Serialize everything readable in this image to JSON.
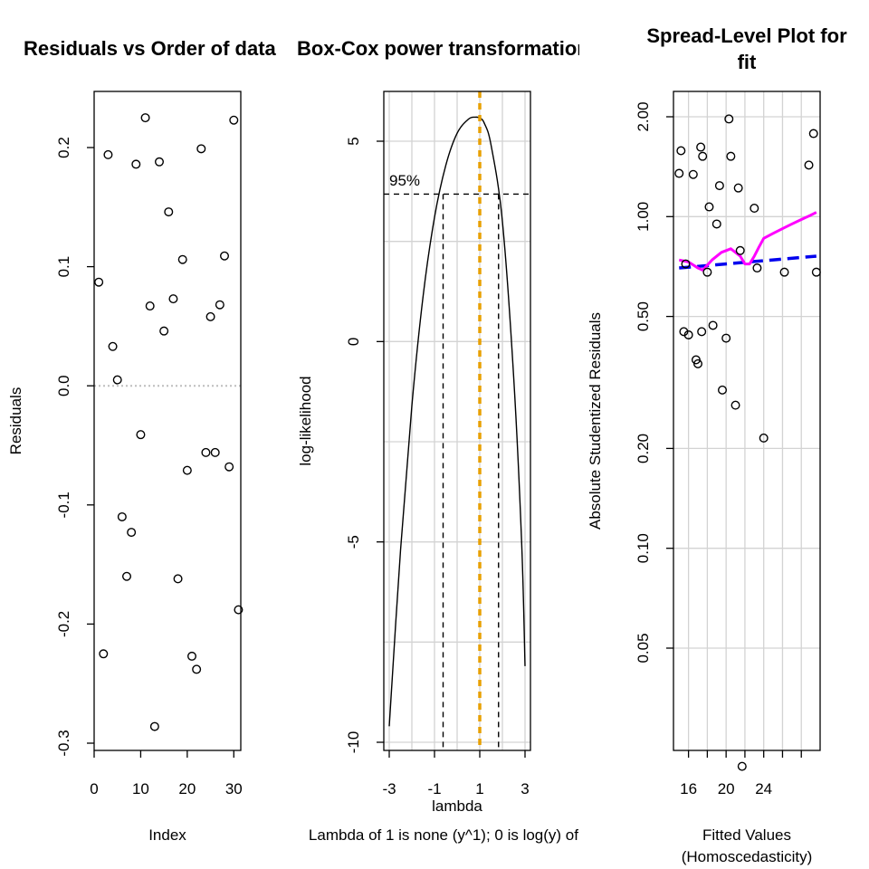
{
  "chart_data": [
    {
      "type": "scatter",
      "title": "Residuals vs Order of data",
      "xlabel": "Index",
      "ylabel": "Residuals",
      "xlim": [
        0,
        31.5
      ],
      "ylim": [
        -0.3,
        0.24
      ],
      "x_ticks": [
        0,
        10,
        20,
        30
      ],
      "y_ticks": [
        -0.3,
        -0.2,
        -0.1,
        0.0,
        0.1,
        0.2
      ],
      "y_tick_labels": [
        "-0.3",
        "-0.2",
        "-0.1",
        "0.0",
        "0.1",
        "0.2"
      ],
      "reference_line": {
        "y": 0,
        "style": "dotted",
        "color": "#bebebe"
      },
      "grid": false,
      "marker": "open-circle",
      "x": [
        1,
        2,
        3,
        4,
        5,
        6,
        7,
        8,
        9,
        10,
        11,
        12,
        13,
        14,
        15,
        16,
        17,
        18,
        19,
        20,
        21,
        22,
        23,
        24,
        25,
        26,
        27,
        28,
        29,
        30,
        31
      ],
      "y": [
        0.087,
        -0.225,
        0.194,
        0.033,
        0.005,
        -0.11,
        -0.16,
        -0.123,
        0.186,
        -0.041,
        0.225,
        0.067,
        -0.286,
        0.188,
        0.046,
        0.146,
        0.073,
        -0.162,
        0.106,
        -0.071,
        -0.227,
        -0.238,
        0.199,
        -0.056,
        0.058,
        -0.056,
        0.068,
        0.109,
        -0.068,
        0.223,
        -0.188
      ]
    },
    {
      "type": "line",
      "title": "Box-Cox power transformation",
      "xlabel": "lambda",
      "subtitle": "Lambda of 1 is none (y^1); 0 is log(y) of",
      "ylabel": "log-likelihood",
      "xlim": [
        -3.2,
        3.2
      ],
      "ylim": [
        -10.6,
        6.3
      ],
      "x_ticks": [
        -3,
        -1,
        1,
        3
      ],
      "x_minor_grid": [
        -3,
        -2,
        -1,
        0,
        1,
        2,
        3
      ],
      "y_ticks": [
        -10,
        -5,
        0,
        5
      ],
      "grid": true,
      "annotation": "95%",
      "curve": {
        "x": [
          -3,
          -2.5,
          -2,
          -1.5,
          -1,
          -0.5,
          0,
          0.5,
          0.8,
          1.0,
          1.2,
          1.5,
          2,
          2.5,
          2.85,
          3
        ],
        "y": [
          -9.6,
          -5.2,
          -1.6,
          1.15,
          3.1,
          4.4,
          5.2,
          5.55,
          5.6,
          5.58,
          5.45,
          4.9,
          3.0,
          -0.9,
          -5.0,
          -8.1
        ]
      },
      "ci_threshold_y": 3.68,
      "ci_lower_x": -0.62,
      "ci_upper_x": 1.83,
      "optimum_lambda": 1.0,
      "optimum_color": "#e8a000"
    },
    {
      "type": "scatter",
      "title": "Spread-Level Plot for fit",
      "xlabel": "Fitted Values",
      "xlabel2": "(Homoscedasticity)",
      "ylabel": "Absolute Studentized Residuals",
      "y_scale": "log",
      "xlim": [
        14.4,
        30
      ],
      "ylim": [
        0.0178,
        2.35
      ],
      "x_ticks": [
        16,
        20,
        24
      ],
      "x_minor_grid": [
        16,
        18,
        20,
        22,
        24,
        26,
        28
      ],
      "y_ticks": [
        0.05,
        0.1,
        0.2,
        0.5,
        1.0,
        2.0
      ],
      "y_tick_labels": [
        "0.05",
        "0.10",
        "0.20",
        "0.50",
        "1.00",
        "2.00"
      ],
      "grid": true,
      "marker": "open-circle",
      "x": [
        15.0,
        15.2,
        15.5,
        15.7,
        16.0,
        16.5,
        16.8,
        17.0,
        17.3,
        17.4,
        17.5,
        18.0,
        18.2,
        18.6,
        19.0,
        19.3,
        19.6,
        20.0,
        20.3,
        20.5,
        21.0,
        21.3,
        21.5,
        21.7,
        23.0,
        23.3,
        24.0,
        26.2,
        28.8,
        29.3,
        29.6
      ],
      "y": [
        1.35,
        1.58,
        0.45,
        0.72,
        0.44,
        1.34,
        0.37,
        0.36,
        1.62,
        0.45,
        1.52,
        0.68,
        1.07,
        0.47,
        0.95,
        1.24,
        0.3,
        0.43,
        1.97,
        1.52,
        0.27,
        1.22,
        0.79,
        0.022,
        1.06,
        0.7,
        0.215,
        0.68,
        1.43,
        1.78,
        0.68
      ],
      "series": [
        {
          "name": "smoother",
          "color": "#ff00ff",
          "style": "solid",
          "x": [
            15.0,
            16.0,
            17.0,
            17.5,
            18.5,
            19.5,
            20.5,
            21.5,
            22.0,
            22.5,
            23.0,
            23.5,
            24.0,
            25.0,
            26.0,
            27.0,
            28.0,
            29.0,
            29.6
          ],
          "y": [
            0.74,
            0.73,
            0.7,
            0.69,
            0.74,
            0.78,
            0.8,
            0.76,
            0.72,
            0.72,
            0.76,
            0.81,
            0.86,
            0.89,
            0.92,
            0.95,
            0.98,
            1.01,
            1.03
          ]
        },
        {
          "name": "fit",
          "color": "#0000ee",
          "style": "dashed",
          "x": [
            15.0,
            29.6
          ],
          "y": [
            0.7,
            0.76
          ]
        }
      ]
    }
  ]
}
